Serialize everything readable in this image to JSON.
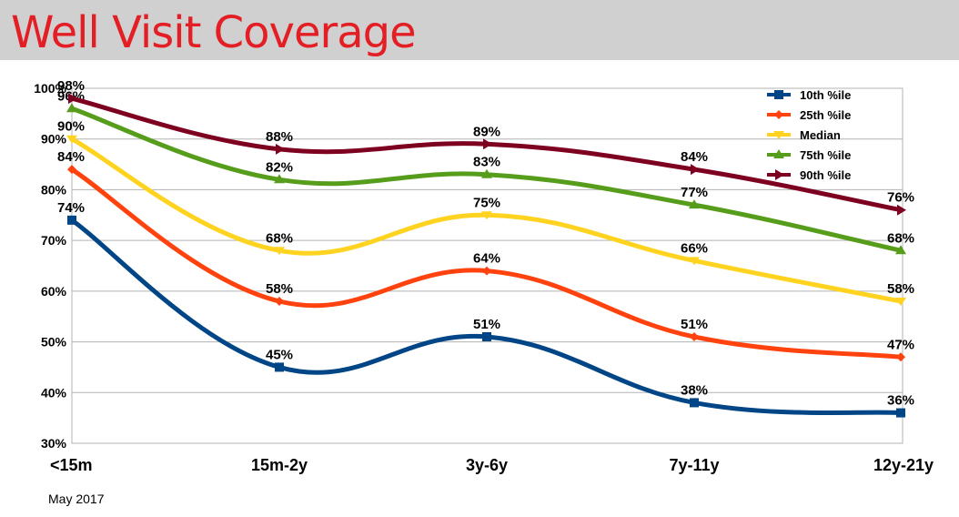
{
  "slide": {
    "title": "Well Visit Coverage",
    "footer_date": "May 2017"
  },
  "colors": {
    "title": "#e31e24",
    "header_band": "#d0d0d0",
    "grid": "#b3b3b3"
  },
  "chart_data": {
    "type": "line",
    "categories": [
      "<15m",
      "15m-2y",
      "3y-6y",
      "7y-11y",
      "12y-21y"
    ],
    "ylim": [
      0.3,
      1.0
    ],
    "yticks": [
      0.3,
      0.4,
      0.5,
      0.6,
      0.7,
      0.8,
      0.9,
      1.0
    ],
    "ytick_labels": [
      "30%",
      "40%",
      "50%",
      "60%",
      "70%",
      "80%",
      "90%",
      "100%"
    ],
    "grid": true,
    "legend_position": "top-right",
    "smooth": true,
    "series": [
      {
        "name": "10th %ile",
        "color": "#004586",
        "marker": "square",
        "values": [
          0.74,
          0.45,
          0.51,
          0.38,
          0.36
        ],
        "labels": [
          "74%",
          "45%",
          "51%",
          "38%",
          "36%"
        ]
      },
      {
        "name": "25th %ile",
        "color": "#ff420e",
        "marker": "diamond",
        "values": [
          0.84,
          0.58,
          0.64,
          0.51,
          0.47
        ],
        "labels": [
          "84%",
          "58%",
          "64%",
          "51%",
          "47%"
        ]
      },
      {
        "name": "Median",
        "color": "#ffd320",
        "marker": "triangle-down",
        "values": [
          0.9,
          0.68,
          0.75,
          0.66,
          0.58
        ],
        "labels": [
          "90%",
          "68%",
          "75%",
          "66%",
          "58%"
        ]
      },
      {
        "name": "75th %ile",
        "color": "#579d1c",
        "marker": "triangle-up",
        "values": [
          0.96,
          0.82,
          0.83,
          0.77,
          0.68
        ],
        "labels": [
          "96%",
          "82%",
          "83%",
          "77%",
          "68%"
        ]
      },
      {
        "name": "90th %ile",
        "color": "#7e0021",
        "marker": "triangle-right",
        "values": [
          0.98,
          0.88,
          0.89,
          0.84,
          0.76
        ],
        "labels": [
          "98%",
          "88%",
          "89%",
          "84%",
          "76%"
        ]
      }
    ]
  }
}
